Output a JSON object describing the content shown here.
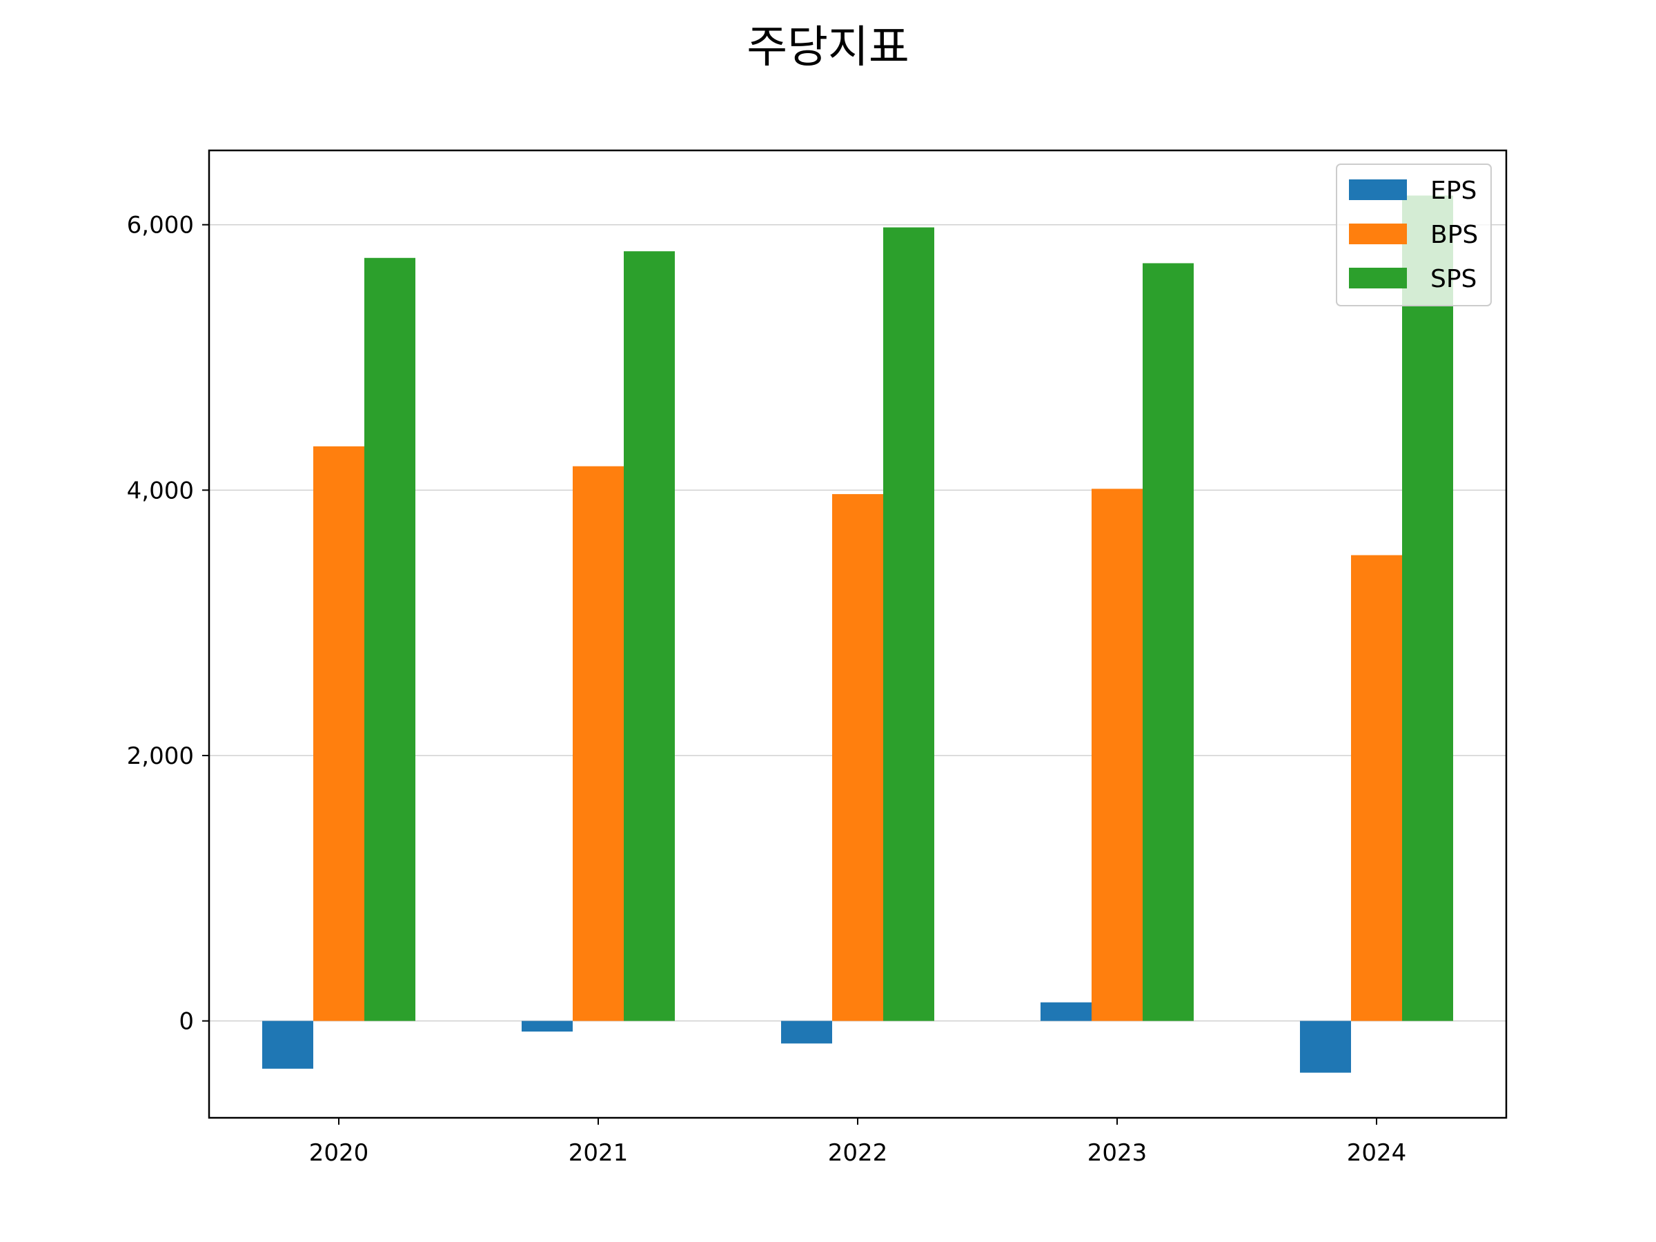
{
  "chart_data": {
    "type": "bar",
    "title": "주당지표",
    "xlabel": "",
    "ylabel": "",
    "categories": [
      "2020",
      "2021",
      "2022",
      "2023",
      "2024"
    ],
    "series": [
      {
        "name": "EPS",
        "color": "#1f77b4",
        "values": [
          -360,
          -80,
          -170,
          140,
          -390
        ]
      },
      {
        "name": "BPS",
        "color": "#ff7f0e",
        "values": [
          4330,
          4180,
          3970,
          4010,
          3510
        ]
      },
      {
        "name": "SPS",
        "color": "#2ca02c",
        "values": [
          5750,
          5800,
          5980,
          5710,
          6220
        ]
      }
    ],
    "yticks": [
      0,
      2000,
      4000,
      6000
    ],
    "ytick_labels": [
      "0",
      "2,000",
      "4,000",
      "6,000"
    ],
    "ylim": [
      -730,
      6560
    ],
    "grid": "y",
    "legend_position": "top-right"
  }
}
